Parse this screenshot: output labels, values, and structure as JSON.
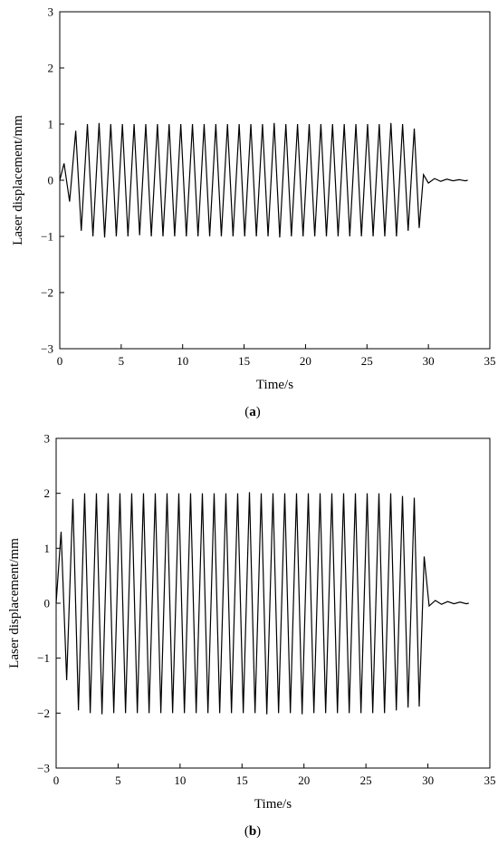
{
  "chart_data": [
    {
      "type": "line",
      "panel_label": "a",
      "xlabel": "Time/s",
      "ylabel": "Laser displacement/mm",
      "xlim": [
        0,
        35
      ],
      "ylim": [
        -3,
        3
      ],
      "xticks": [
        0,
        5,
        10,
        15,
        20,
        25,
        30,
        35
      ],
      "yticks": [
        -3,
        -2,
        -1,
        0,
        1,
        2,
        3
      ],
      "xtick_labels": [
        "0",
        "5",
        "10",
        "15",
        "20",
        "25",
        "30",
        "35"
      ],
      "ytick_labels": [
        "−3",
        "−2",
        "−1",
        "0",
        "1",
        "2",
        "3"
      ],
      "grid": false,
      "series": [
        {
          "color": "#000000",
          "x": [
            0,
            0.35,
            0.8,
            1.3,
            1.75,
            2.25,
            2.7,
            3.2,
            3.65,
            4.15,
            4.6,
            5.1,
            5.55,
            6.05,
            6.5,
            7.0,
            7.45,
            7.95,
            8.4,
            8.9,
            9.35,
            9.85,
            10.3,
            10.8,
            11.25,
            11.75,
            12.2,
            12.7,
            13.15,
            13.65,
            14.1,
            14.6,
            15.05,
            15.55,
            16.0,
            16.5,
            16.95,
            17.45,
            17.9,
            18.4,
            18.85,
            19.35,
            19.8,
            20.3,
            20.75,
            21.25,
            21.7,
            22.2,
            22.65,
            23.15,
            23.6,
            24.1,
            24.55,
            25.05,
            25.5,
            26.0,
            26.45,
            26.95,
            27.4,
            27.9,
            28.35,
            28.85,
            29.25,
            29.6,
            30.0,
            30.5,
            31.0,
            31.5,
            32.0,
            32.5,
            33.0,
            33.2
          ],
          "y": [
            0.0,
            0.3,
            -0.38,
            0.88,
            -0.9,
            1.0,
            -1.0,
            1.02,
            -1.02,
            1.0,
            -1.0,
            1.0,
            -1.0,
            1.0,
            -0.98,
            1.0,
            -1.0,
            1.0,
            -1.0,
            1.0,
            -1.0,
            1.0,
            -1.0,
            1.0,
            -1.0,
            1.0,
            -1.0,
            1.0,
            -1.0,
            1.0,
            -1.0,
            1.0,
            -1.0,
            1.0,
            -1.0,
            1.0,
            -1.0,
            1.02,
            -1.02,
            1.0,
            -1.0,
            1.0,
            -1.0,
            1.0,
            -1.0,
            1.0,
            -1.0,
            1.0,
            -1.0,
            1.0,
            -1.0,
            1.0,
            -1.0,
            1.0,
            -1.0,
            1.0,
            -1.0,
            1.02,
            -1.0,
            1.0,
            -0.9,
            0.92,
            -0.85,
            0.1,
            -0.05,
            0.03,
            -0.02,
            0.02,
            -0.01,
            0.01,
            -0.01,
            0.0
          ]
        }
      ]
    },
    {
      "type": "line",
      "panel_label": "b",
      "xlabel": "Time/s",
      "ylabel": "Laser displacement/mm",
      "xlim": [
        0,
        35
      ],
      "ylim": [
        -3,
        3
      ],
      "xticks": [
        0,
        5,
        10,
        15,
        20,
        25,
        30,
        35
      ],
      "yticks": [
        -3,
        -2,
        -1,
        0,
        1,
        2,
        3
      ],
      "xtick_labels": [
        "0",
        "5",
        "10",
        "15",
        "20",
        "25",
        "30",
        "35"
      ],
      "ytick_labels": [
        "−3",
        "−2",
        "−1",
        "0",
        "1",
        "2",
        "3"
      ],
      "grid": false,
      "series": [
        {
          "color": "#000000",
          "x": [
            0,
            0.4,
            0.85,
            1.35,
            1.8,
            2.3,
            2.75,
            3.25,
            3.7,
            4.2,
            4.65,
            5.15,
            5.6,
            6.1,
            6.55,
            7.05,
            7.5,
            8.0,
            8.45,
            8.95,
            9.4,
            9.9,
            10.35,
            10.85,
            11.3,
            11.8,
            12.25,
            12.75,
            13.2,
            13.7,
            14.15,
            14.65,
            15.1,
            15.6,
            16.05,
            16.55,
            17.0,
            17.5,
            17.95,
            18.45,
            18.9,
            19.4,
            19.85,
            20.35,
            20.8,
            21.3,
            21.75,
            22.25,
            22.7,
            23.2,
            23.65,
            24.15,
            24.6,
            25.1,
            25.55,
            26.05,
            26.5,
            27.0,
            27.45,
            27.95,
            28.4,
            28.9,
            29.3,
            29.7,
            30.1,
            30.6,
            31.1,
            31.6,
            32.1,
            32.6,
            33.1,
            33.3
          ],
          "y": [
            0.0,
            1.3,
            -1.4,
            1.9,
            -1.95,
            2.0,
            -2.0,
            2.0,
            -2.02,
            2.0,
            -2.0,
            2.0,
            -2.0,
            2.0,
            -2.0,
            2.0,
            -2.0,
            2.0,
            -2.0,
            2.0,
            -2.0,
            2.0,
            -2.0,
            2.0,
            -2.0,
            2.0,
            -2.0,
            2.0,
            -2.0,
            2.0,
            -2.0,
            2.0,
            -2.0,
            2.02,
            -2.0,
            2.0,
            -2.02,
            2.0,
            -2.0,
            2.0,
            -2.0,
            2.0,
            -2.02,
            2.0,
            -2.0,
            2.0,
            -2.0,
            2.0,
            -2.0,
            2.0,
            -2.0,
            2.0,
            -2.0,
            2.0,
            -2.0,
            2.0,
            -2.0,
            2.0,
            -1.95,
            1.95,
            -1.9,
            1.92,
            -1.88,
            0.85,
            -0.05,
            0.05,
            -0.02,
            0.03,
            -0.01,
            0.02,
            -0.01,
            0.0
          ]
        }
      ]
    }
  ]
}
